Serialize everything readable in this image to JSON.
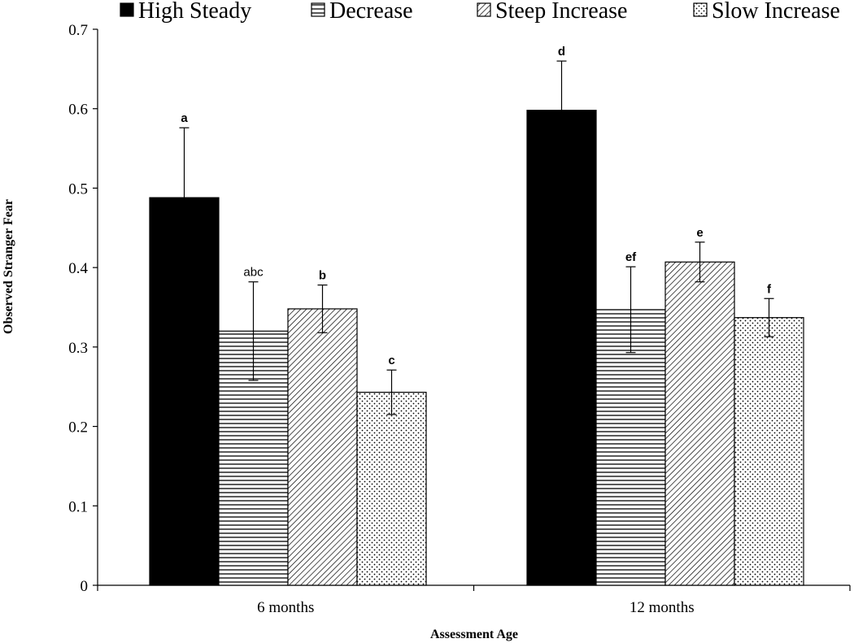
{
  "chart_data": {
    "type": "bar",
    "title": "",
    "xlabel": "Assessment Age",
    "ylabel": "Observed Stranger Fear",
    "ylim": [
      0,
      0.7
    ],
    "yticks": [
      "0",
      "0.1",
      "0.2",
      "0.3",
      "0.4",
      "0.5",
      "0.6",
      "0.7"
    ],
    "ytick_values": [
      0,
      0.1,
      0.2,
      0.3,
      0.4,
      0.5,
      0.6,
      0.7
    ],
    "categories": [
      "6 months",
      "12 months"
    ],
    "legend_position": "top",
    "series": [
      {
        "name": "High Steady",
        "pattern": "solid",
        "values": [
          0.488,
          0.598
        ],
        "errors": [
          0.088,
          0.062
        ],
        "sig_labels": [
          "a",
          "d"
        ],
        "sig_bold": [
          true,
          true
        ]
      },
      {
        "name": "Decrease",
        "pattern": "horizontal",
        "values": [
          0.32,
          0.347
        ],
        "errors": [
          0.062,
          0.054
        ],
        "sig_labels": [
          "abc",
          "ef"
        ],
        "sig_bold": [
          false,
          true
        ]
      },
      {
        "name": "Steep Increase",
        "pattern": "diagonal",
        "values": [
          0.348,
          0.407
        ],
        "errors": [
          0.03,
          0.025
        ],
        "sig_labels": [
          "b",
          "e"
        ],
        "sig_bold": [
          true,
          true
        ]
      },
      {
        "name": "Slow Increase",
        "pattern": "dotted",
        "values": [
          0.243,
          0.337
        ],
        "errors": [
          0.028,
          0.024
        ],
        "sig_labels": [
          "c",
          "f"
        ],
        "sig_bold": [
          true,
          true
        ]
      }
    ]
  },
  "colors": {
    "bar_fill_solid": "#000000",
    "pattern_stroke": "#000000",
    "background": "#ffffff"
  }
}
